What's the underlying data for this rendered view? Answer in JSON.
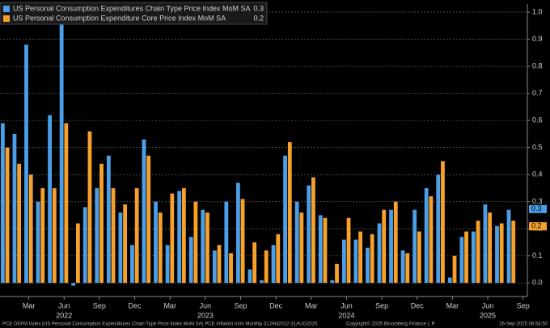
{
  "chart_data": {
    "type": "bar",
    "categories": [
      null,
      null,
      "Mar",
      null,
      null,
      "Jun",
      null,
      null,
      "Sep",
      null,
      null,
      "Dec",
      null,
      null,
      "Mar",
      null,
      null,
      "Jun",
      null,
      null,
      "Sep",
      null,
      null,
      "Dec",
      null,
      null,
      "Mar",
      null,
      null,
      "Jun",
      null,
      null,
      "Sep",
      null,
      null,
      "Dec",
      null,
      null,
      "Mar",
      null,
      null,
      "Jun",
      null,
      null,
      "Sep"
    ],
    "year_row": [
      null,
      null,
      null,
      null,
      null,
      "2022",
      null,
      null,
      null,
      null,
      null,
      null,
      null,
      null,
      null,
      null,
      null,
      "2023",
      null,
      null,
      null,
      null,
      null,
      null,
      null,
      null,
      null,
      null,
      null,
      "2024",
      null,
      null,
      null,
      null,
      null,
      null,
      null,
      null,
      null,
      null,
      null,
      "2025",
      null,
      null,
      null
    ],
    "series": [
      {
        "name": "US Personal Consumption Expenditures Chain Type Price Index MoM SA",
        "last_value": 0.3,
        "color": "#4a9fe8",
        "values": [
          0.59,
          0.55,
          0.88,
          0.3,
          0.62,
          0.96,
          -0.01,
          0.28,
          0.35,
          0.47,
          0.26,
          0.14,
          0.53,
          0.3,
          0.14,
          0.34,
          0.17,
          0.27,
          0.12,
          0.3,
          0.37,
          0.05,
          0.01,
          0.14,
          0.47,
          0.3,
          0.36,
          0.25,
          0.01,
          0.16,
          0.16,
          0.13,
          0.22,
          0.27,
          0.12,
          0.27,
          0.35,
          0.4,
          0.02,
          0.17,
          0.19,
          0.29,
          0.21,
          0.27,
          null
        ]
      },
      {
        "name": "US Personal Consumption Expenditure Core Price Index MoM SA",
        "last_value": 0.2,
        "color": "#f7a12a",
        "values": [
          0.5,
          0.44,
          0.4,
          0.35,
          0.35,
          0.59,
          0.22,
          0.56,
          0.44,
          0.35,
          0.29,
          0.35,
          0.47,
          0.26,
          0.33,
          0.35,
          0.3,
          0.26,
          0.14,
          0.11,
          0.31,
          0.15,
          0.12,
          0.18,
          0.52,
          0.26,
          0.39,
          0.24,
          0.07,
          0.24,
          0.19,
          0.18,
          0.27,
          0.3,
          0.11,
          0.19,
          0.32,
          0.45,
          0.1,
          0.19,
          0.23,
          0.26,
          0.22,
          0.23,
          null
        ]
      }
    ],
    "ylim": [
      -0.05,
      1.03
    ],
    "yticks": [
      {
        "value": 0,
        "label": "0.0"
      },
      0.1,
      0.2,
      0.3,
      0.4,
      0.5,
      0.6,
      0.7,
      0.8,
      0.9,
      {
        "value": 1,
        "label": "1.0"
      }
    ],
    "grid": true,
    "footer": {
      "source": "PCE DEFM Index (US Personal Consumption Expenditures Chain Type Price Index MoM SA) PCE Inflation m/m  Monthly 31JAN2022-31AUG2025",
      "copyright": "Copyright© 2025 Bloomberg Finance L.P.",
      "timestamp": "26-Sep-2025 08:54:50"
    }
  }
}
